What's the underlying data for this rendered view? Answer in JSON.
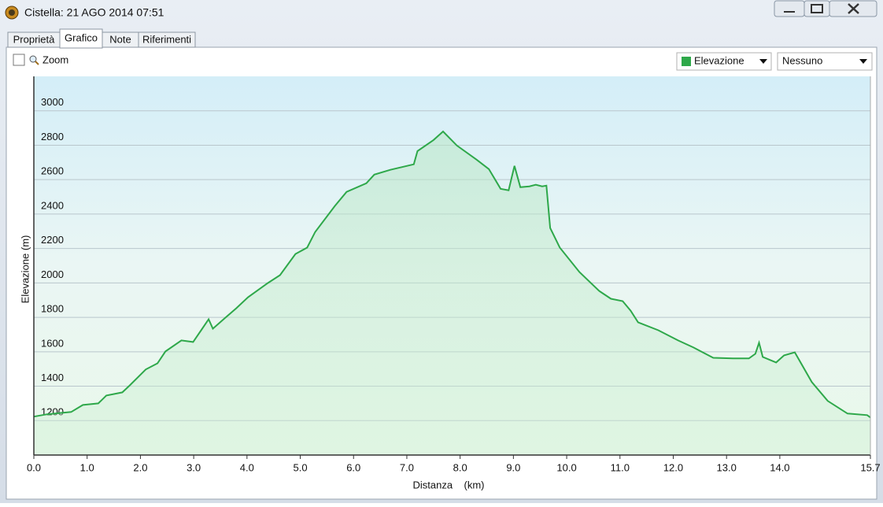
{
  "window": {
    "title": "Cistella: 21 AGO 2014 07:51"
  },
  "tabs": [
    "Proprietà",
    "Grafico",
    "Note",
    "Riferimenti"
  ],
  "toolbar": {
    "zoom": "Zoom",
    "second_select": "Nessuno"
  },
  "chart_data": {
    "type": "line",
    "x_label": "Distanza    (km)",
    "y_label": "Elevazione (m)",
    "x": [
      0,
      0.25,
      0.7,
      0.92,
      1.21,
      1.36,
      1.66,
      1.8,
      2.1,
      2.32,
      2.47,
      2.77,
      2.99,
      3.14,
      3.28,
      3.36,
      3.58,
      3.8,
      4.02,
      4.39,
      4.62,
      4.91,
      5.13,
      5.28,
      5.65,
      5.87,
      6.24,
      6.39,
      6.69,
      7.13,
      7.2,
      7.5,
      7.68,
      7.94,
      8.31,
      8.54,
      8.76,
      8.91,
      9.02,
      9.13,
      9.3,
      9.42,
      9.54,
      9.62,
      9.69,
      9.87,
      10.24,
      10.61,
      10.83,
      11.05,
      11.2,
      11.34,
      11.72,
      12.09,
      12.38,
      12.75,
      13.12,
      13.42,
      13.54,
      13.61,
      13.68,
      13.93,
      14.08,
      14.28,
      14.6,
      14.9,
      15.27,
      15.64,
      15.7
    ],
    "series": [
      {
        "name": "Elevazione",
        "color": "#2ea84a",
        "values": [
          1223,
          1237,
          1250,
          1291,
          1300,
          1346,
          1364,
          1405,
          1497,
          1533,
          1602,
          1666,
          1657,
          1725,
          1789,
          1734,
          1794,
          1853,
          1917,
          1999,
          2045,
          2168,
          2205,
          2296,
          2447,
          2529,
          2579,
          2629,
          2657,
          2689,
          2766,
          2830,
          2880,
          2798,
          2716,
          2661,
          2547,
          2538,
          2680,
          2556,
          2561,
          2570,
          2561,
          2565,
          2319,
          2205,
          2063,
          1953,
          1908,
          1894,
          1839,
          1771,
          1725,
          1666,
          1625,
          1565,
          1561,
          1561,
          1588,
          1652,
          1570,
          1538,
          1579,
          1597,
          1424,
          1314,
          1241,
          1232,
          1218
        ]
      }
    ],
    "xlim": [
      0,
      15.7
    ],
    "ylim": [
      1000,
      3200
    ],
    "xticks": [
      {
        "value": 0,
        "label": "0.0"
      },
      {
        "value": 1,
        "label": "1.0"
      },
      {
        "value": 2,
        "label": "2.0"
      },
      {
        "value": 3,
        "label": "3.0"
      },
      {
        "value": 4,
        "label": "4.0"
      },
      {
        "value": 5,
        "label": "5.0"
      },
      {
        "value": 6,
        "label": "6.0"
      },
      {
        "value": 7,
        "label": "7.0"
      },
      {
        "value": 8,
        "label": "8.0"
      },
      {
        "value": 9,
        "label": "9.0"
      },
      {
        "value": 10,
        "label": "10.0"
      },
      {
        "value": 11,
        "label": "11.0"
      },
      {
        "value": 12,
        "label": "12.0"
      },
      {
        "value": 13,
        "label": "13.0"
      },
      {
        "value": 14,
        "label": "14.0"
      },
      15.7
    ],
    "yticks": [
      1200,
      1400,
      1600,
      1800,
      2000,
      2200,
      2400,
      2600,
      2800,
      3000
    ],
    "grid": true
  }
}
